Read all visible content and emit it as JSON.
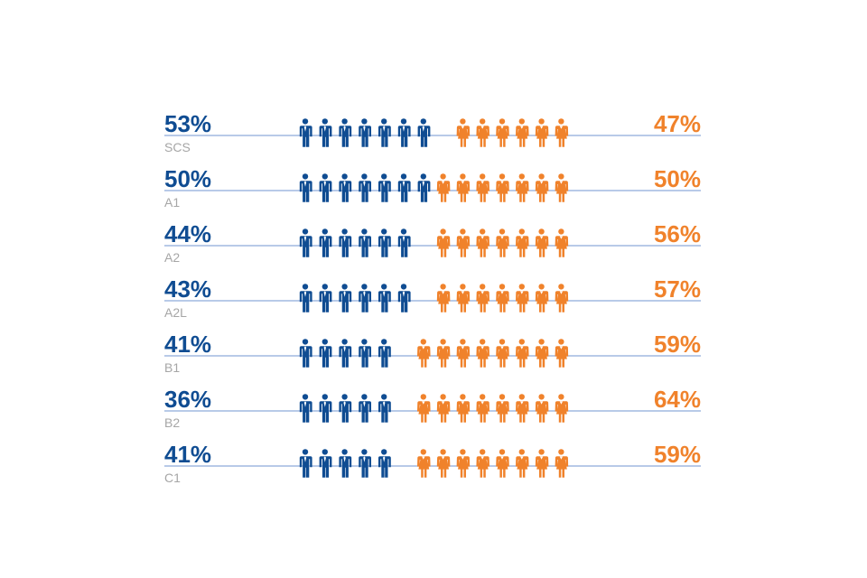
{
  "chart_data": {
    "type": "pictogram",
    "title": "",
    "icons_per_row": 14,
    "series": [
      {
        "name": "Men",
        "color": "#0f4c92"
      },
      {
        "name": "Women",
        "color": "#f0822b"
      }
    ],
    "categories": [
      "SCS",
      "A1",
      "A2",
      "A2L",
      "B1",
      "B2",
      "C1"
    ],
    "rows": [
      {
        "grade": "SCS",
        "left_label": "53%",
        "right_label": "47%",
        "men_pct": 53,
        "women_pct": 47
      },
      {
        "grade": "A1",
        "left_label": "50%",
        "right_label": "50%",
        "men_pct": 50,
        "women_pct": 50
      },
      {
        "grade": "A2",
        "left_label": "44%",
        "right_label": "56%",
        "men_pct": 44,
        "women_pct": 56
      },
      {
        "grade": "A2L",
        "left_label": "43%",
        "right_label": "57%",
        "men_pct": 43,
        "women_pct": 57
      },
      {
        "grade": "B1",
        "left_label": "41%",
        "right_label": "59%",
        "men_pct": 41,
        "women_pct": 59
      },
      {
        "grade": "B2",
        "left_label": "36%",
        "right_label": "64%",
        "men_pct": 36,
        "women_pct": 64
      },
      {
        "grade": "C1",
        "left_label": "41%",
        "right_label": "59%",
        "men_pct": 41,
        "women_pct": 59
      }
    ]
  },
  "colors": {
    "men": "#0f4c92",
    "women": "#f0822b",
    "grade_label": "#a6a6a6",
    "baseline": "#8eaadb"
  }
}
